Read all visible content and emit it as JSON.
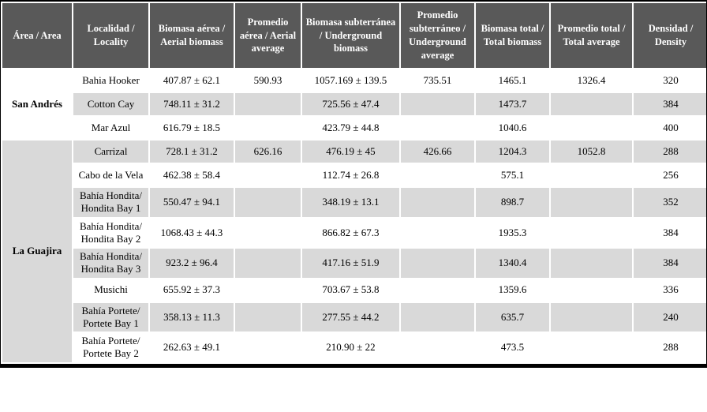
{
  "meta": {
    "colors": {
      "header_bg": "#595959",
      "header_text": "#ffffff",
      "row_white": "#ffffff",
      "row_gray": "#d9d9d9",
      "grid_line": "#ffffff",
      "frame": "#000000"
    }
  },
  "table": {
    "headers": [
      "Área / Area",
      "Localidad / Locality",
      "Biomasa aérea / Aerial biomass",
      "Promedio aérea / Aerial average",
      "Biomasa subterránea / Underground biomass",
      "Promedio subterráneo / Underground average",
      "Biomasa total / Total biomass",
      "Promedio total / Total average",
      "Densidad / Density"
    ],
    "groups": [
      {
        "area": "San Andrés",
        "shade": "white",
        "rows": [
          {
            "locality": "Bahia Hooker",
            "aerial_biomass": "407.87 ± 62.1",
            "aerial_average": "590.93",
            "underground_biomass": "1057.169 ± 139.5",
            "underground_average": "735.51",
            "total_biomass": "1465.1",
            "total_average": "1326.4",
            "density": "320"
          },
          {
            "locality": "Cotton Cay",
            "aerial_biomass": "748.11 ± 31.2",
            "aerial_average": "",
            "underground_biomass": "725.56 ± 47.4",
            "underground_average": "",
            "total_biomass": "1473.7",
            "total_average": "",
            "density": "384"
          },
          {
            "locality": "Mar Azul",
            "aerial_biomass": "616.79 ± 18.5",
            "aerial_average": "",
            "underground_biomass": "423.79 ± 44.8",
            "underground_average": "",
            "total_biomass": "1040.6",
            "total_average": "",
            "density": "400"
          }
        ]
      },
      {
        "area": "La Guajira",
        "shade": "gray",
        "rows": [
          {
            "locality": "Carrizal",
            "aerial_biomass": "728.1 ± 31.2",
            "aerial_average": "626.16",
            "underground_biomass": "476.19 ± 45",
            "underground_average": "426.66",
            "total_biomass": "1204.3",
            "total_average": "1052.8",
            "density": "288"
          },
          {
            "locality": "Cabo de la Vela",
            "aerial_biomass": "462.38 ± 58.4",
            "aerial_average": "",
            "underground_biomass": "112.74 ± 26.8",
            "underground_average": "",
            "total_biomass": "575.1",
            "total_average": "",
            "density": "256"
          },
          {
            "locality": "Bahía Hondita/ Hondita Bay 1",
            "aerial_biomass": "550.47 ± 94.1",
            "aerial_average": "",
            "underground_biomass": "348.19 ± 13.1",
            "underground_average": "",
            "total_biomass": "898.7",
            "total_average": "",
            "density": "352"
          },
          {
            "locality": "Bahía Hondita/ Hondita Bay 2",
            "aerial_biomass": "1068.43 ± 44.3",
            "aerial_average": "",
            "underground_biomass": "866.82 ± 67.3",
            "underground_average": "",
            "total_biomass": "1935.3",
            "total_average": "",
            "density": "384"
          },
          {
            "locality": "Bahía Hondita/ Hondita Bay 3",
            "aerial_biomass": "923.2 ± 96.4",
            "aerial_average": "",
            "underground_biomass": "417.16 ± 51.9",
            "underground_average": "",
            "total_biomass": "1340.4",
            "total_average": "",
            "density": "384"
          },
          {
            "locality": "Musichi",
            "aerial_biomass": "655.92 ± 37.3",
            "aerial_average": "",
            "underground_biomass": "703.67 ± 53.8",
            "underground_average": "",
            "total_biomass": "1359.6",
            "total_average": "",
            "density": "336"
          },
          {
            "locality": "Bahía Portete/ Portete Bay 1",
            "aerial_biomass": "358.13 ± 11.3",
            "aerial_average": "",
            "underground_biomass": "277.55 ± 44.2",
            "underground_average": "",
            "total_biomass": "635.7",
            "total_average": "",
            "density": "240"
          },
          {
            "locality": "Bahía Portete/ Portete Bay 2",
            "aerial_biomass": "262.63 ± 49.1",
            "aerial_average": "",
            "underground_biomass": "210.90 ± 22",
            "underground_average": "",
            "total_biomass": "473.5",
            "total_average": "",
            "density": "288"
          }
        ]
      }
    ]
  }
}
